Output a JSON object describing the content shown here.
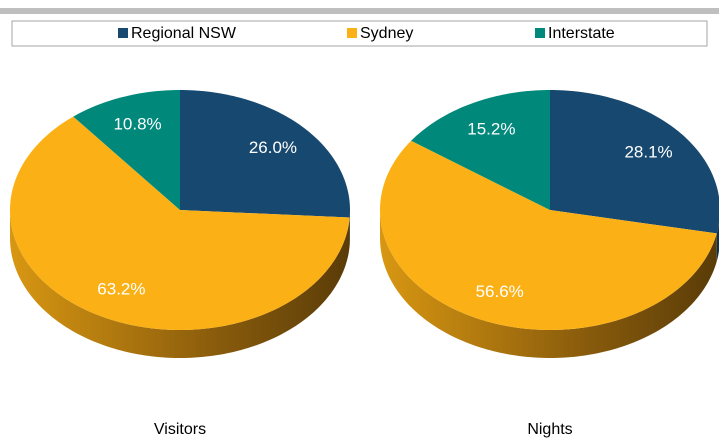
{
  "legend": {
    "labels": [
      "Regional NSW",
      "Sydney",
      "Interstate"
    ],
    "colors": [
      "#17486f",
      "#fbb116",
      "#00897b"
    ]
  },
  "chart_data": [
    {
      "type": "pie",
      "title": "Visitors",
      "values": [
        26.0,
        63.2,
        10.8
      ],
      "value_labels": [
        "26.0%",
        "63.2%",
        "10.8%"
      ]
    },
    {
      "type": "pie",
      "title": "Nights",
      "values": [
        28.1,
        56.6,
        15.2
      ],
      "value_labels": [
        "28.1%",
        "56.6%",
        "15.2%"
      ]
    }
  ]
}
